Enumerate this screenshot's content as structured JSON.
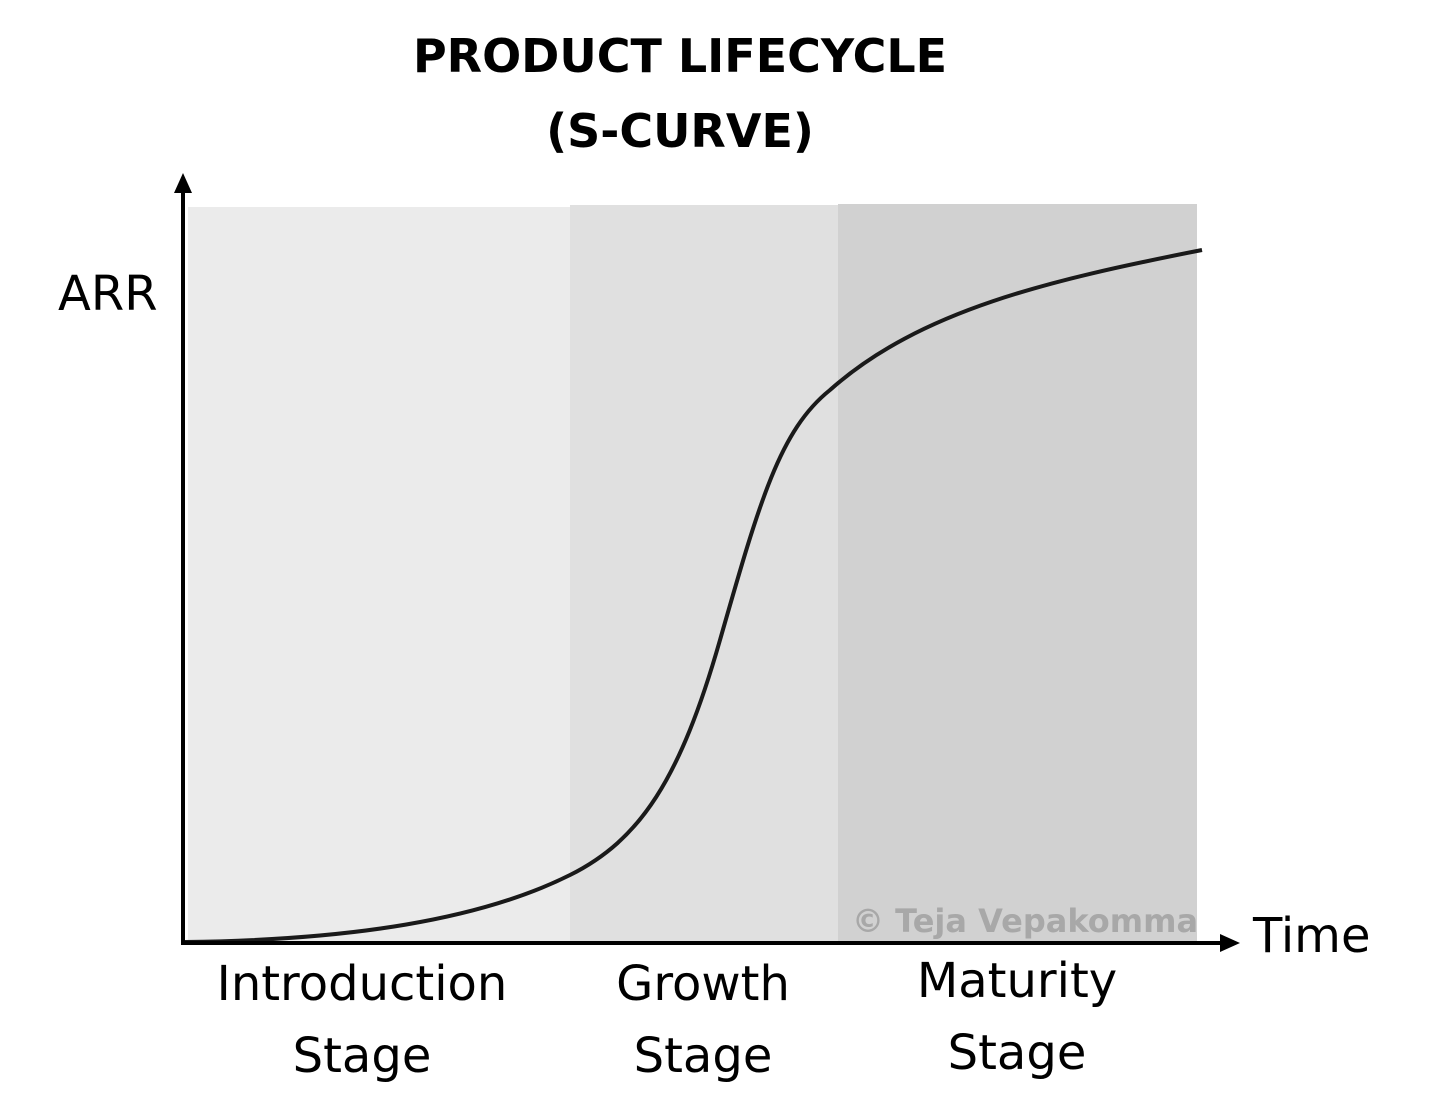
{
  "title": [
    "PRODUCT LIFECYCLE",
    "(S-CURVE)"
  ],
  "axes": {
    "y": "ARR",
    "x": "Time"
  },
  "stages": [
    {
      "lines": [
        "Introduction",
        "Stage"
      ]
    },
    {
      "lines": [
        "Growth",
        "Stage"
      ]
    },
    {
      "lines": [
        "Maturity",
        "Stage"
      ]
    }
  ],
  "watermark": "© Teja Vepakomma"
}
